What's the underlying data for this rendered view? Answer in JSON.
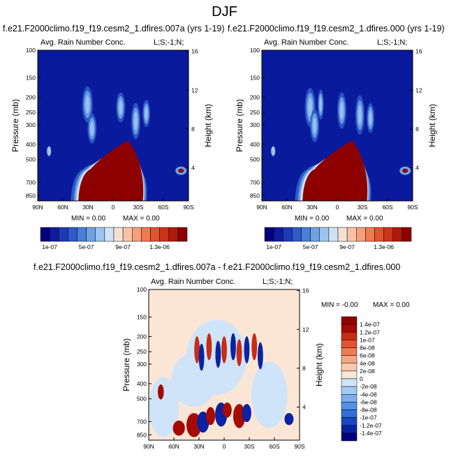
{
  "figure_title": "DJF",
  "colors": {
    "seq_palette": [
      "#00007f",
      "#0f1a9c",
      "#1d3ab4",
      "#2e5bc8",
      "#4a7fd7",
      "#6fa2e3",
      "#9dc4ef",
      "#cfe3f7",
      "#f7e0d2",
      "#f7c3a6",
      "#f4a07b",
      "#ee7a52",
      "#e2532f",
      "#cc3319",
      "#b01a0b",
      "#8e0000"
    ],
    "div_palette": [
      "#00007f",
      "#0a22a3",
      "#1746c4",
      "#2f6fdb",
      "#5291e8",
      "#79afef",
      "#a2cbf4",
      "#cfe4f9",
      "#fbe6d6",
      "#f9c9ab",
      "#f6a581",
      "#f07b55",
      "#e25330",
      "#c52d15",
      "#a60a02",
      "#8e0000"
    ],
    "field_background": "#0a1a9c",
    "diff_background": "#fbe6d6"
  },
  "panels": [
    {
      "title": "f.e21.F2000climo.f19_f19.cesm2_1.dfires.007a (yrs 1-19)",
      "variable": "Avg. Rain Number Conc.",
      "corner_label": "L;S;-1;N;",
      "min_text": "MIN =  0.00",
      "max_text": "MAX =  0.00"
    },
    {
      "title": "f.e21.F2000climo.f19_f19.cesm2_1.dfires.000 (yrs 1-19)",
      "variable": "Avg. Rain Number Conc.",
      "corner_label": "L;S;-1;N;",
      "min_text": "MIN =  0.00",
      "max_text": "MAX =  0.00"
    },
    {
      "title": "f.e21.F2000climo.f19_f19.cesm2_1.dfires.007a - f.e21.F2000climo.f19_f19.cesm2_1.dfires.000",
      "variable": "Avg. Rain Number Conc.",
      "corner_label": "L;S;-1;N;",
      "min_text": "MIN =  -0.00",
      "max_text": "MAX =  0.00"
    }
  ],
  "chart_data": [
    {
      "type": "heatmap",
      "title": "f.e21.F2000climo.f19_f19.cesm2_1.dfires.007a (yrs 1-19)",
      "ylabel": "Pressure (mb)",
      "y2label": "Height (km)",
      "x_ticks": [
        "90N",
        "60N",
        "30N",
        "0",
        "30S",
        "60S",
        "90S"
      ],
      "y_ticks": [
        "100",
        "150",
        "200",
        "250",
        "300",
        "400",
        "500",
        "700",
        "850"
      ],
      "y2_ticks": [
        "16",
        "12",
        "8",
        "4"
      ],
      "y_scale": "log",
      "colorbar_labels": [
        "1e-07",
        "5e-07",
        "9e-07",
        "1.3e-06"
      ]
    },
    {
      "type": "heatmap",
      "title": "f.e21.F2000climo.f19_f19.cesm2_1.dfires.000 (yrs 1-19)",
      "ylabel": "Pressure (mb)",
      "y2label": "Height (km)",
      "x_ticks": [
        "90N",
        "60N",
        "30N",
        "0",
        "30S",
        "60S",
        "90S"
      ],
      "y_ticks": [
        "100",
        "150",
        "200",
        "250",
        "300",
        "400",
        "500",
        "700",
        "850"
      ],
      "y2_ticks": [
        "16",
        "12",
        "8",
        "4"
      ],
      "y_scale": "log",
      "colorbar_labels": [
        "1e-07",
        "5e-07",
        "9e-07",
        "1.3e-06"
      ]
    },
    {
      "type": "heatmap",
      "title": "f.e21.F2000climo.f19_f19.cesm2_1.dfires.007a - f.e21.F2000climo.f19_f19.cesm2_1.dfires.000",
      "ylabel": "Pressure (mb)",
      "y2label": "Height (km)",
      "x_ticks": [
        "90N",
        "60N",
        "30N",
        "0",
        "30S",
        "60S",
        "90S"
      ],
      "y_ticks": [
        "100",
        "150",
        "200",
        "250",
        "300",
        "400",
        "500",
        "700",
        "850"
      ],
      "y2_ticks": [
        "16",
        "12",
        "8",
        "4"
      ],
      "y_scale": "log",
      "colorbar_labels": [
        "1.4e-07",
        "1.2e-07",
        "1e-07",
        "8e-08",
        "6e-08",
        "4e-08",
        "2e-08",
        "0",
        "-2e-08",
        "-4e-08",
        "-6e-08",
        "-8e-08",
        "-1e-07",
        "-1.2e-07",
        "-1.4e-07"
      ]
    }
  ]
}
